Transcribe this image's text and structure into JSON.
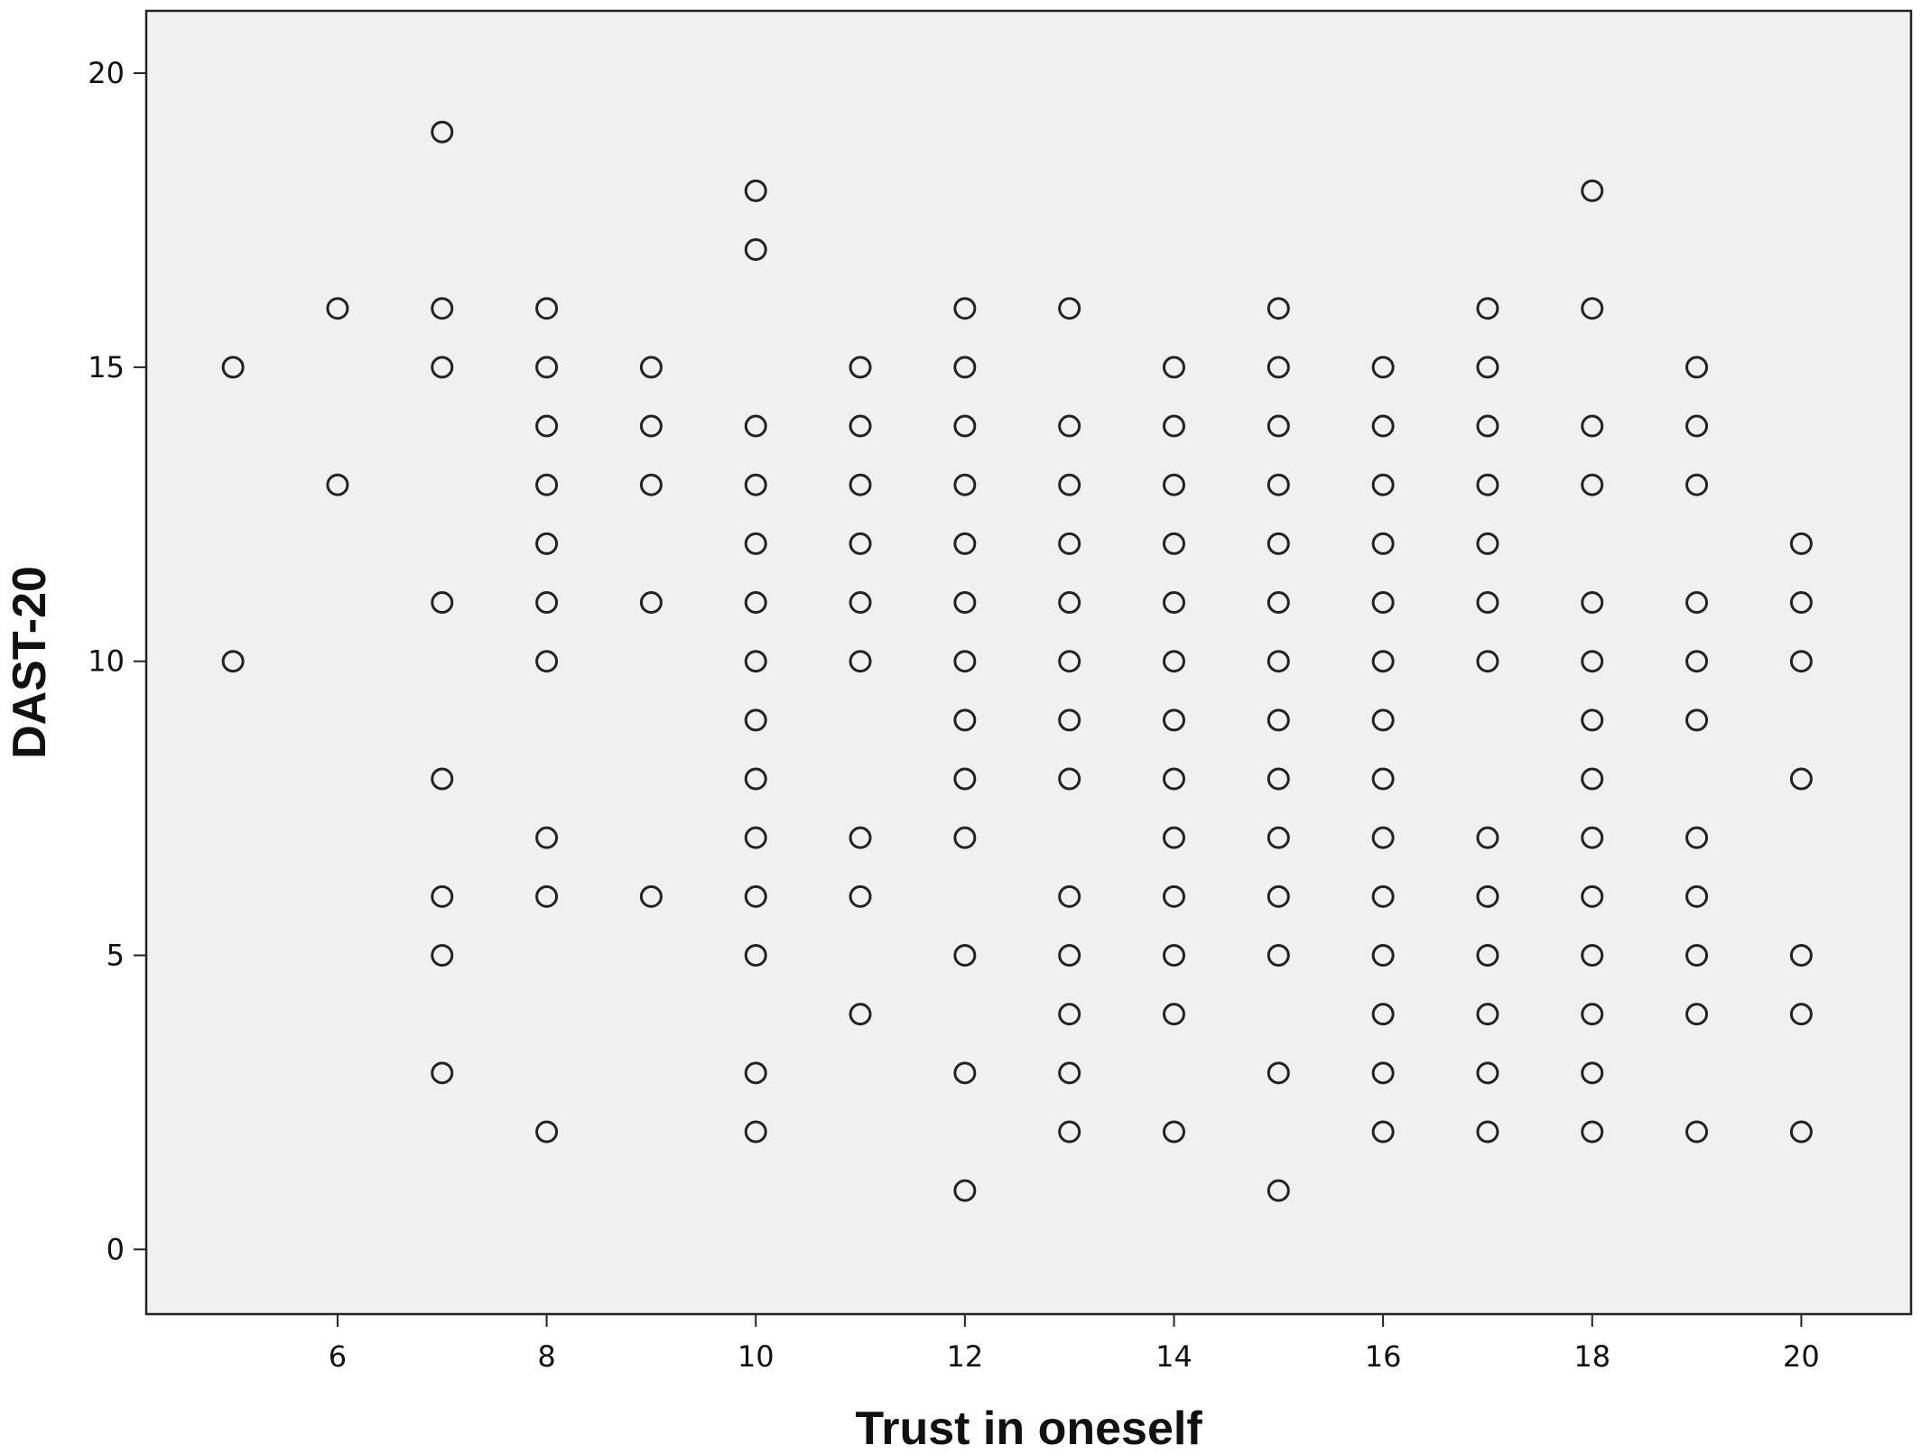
{
  "chart_data": {
    "type": "scatter",
    "title": "",
    "xlabel": "Trust in oneself",
    "ylabel": "DAST-20",
    "xlim": [
      4.17,
      21.05
    ],
    "ylim": [
      -1.1,
      21.06
    ],
    "x_ticks": [
      6,
      8,
      10,
      12,
      14,
      16,
      18,
      20
    ],
    "y_ticks": [
      0,
      5,
      10,
      15,
      20
    ],
    "grid": false,
    "legend": "none",
    "colors": {
      "plot_background": "#f0f0f0",
      "marker_stroke": "#222222",
      "axis": "#222222"
    },
    "series": [
      {
        "points": [
          [
            5,
            15
          ],
          [
            5,
            10
          ],
          [
            6,
            16
          ],
          [
            6,
            13
          ],
          [
            7,
            19
          ],
          [
            7,
            16
          ],
          [
            7,
            15
          ],
          [
            7,
            11
          ],
          [
            7,
            8
          ],
          [
            7,
            6
          ],
          [
            7,
            5
          ],
          [
            7,
            3
          ],
          [
            8,
            16
          ],
          [
            8,
            15
          ],
          [
            8,
            14
          ],
          [
            8,
            13
          ],
          [
            8,
            12
          ],
          [
            8,
            11
          ],
          [
            8,
            10
          ],
          [
            8,
            7
          ],
          [
            8,
            6
          ],
          [
            8,
            2
          ],
          [
            9,
            15
          ],
          [
            9,
            14
          ],
          [
            9,
            13
          ],
          [
            9,
            11
          ],
          [
            9,
            6
          ],
          [
            10,
            18
          ],
          [
            10,
            17
          ],
          [
            10,
            14
          ],
          [
            10,
            13
          ],
          [
            10,
            12
          ],
          [
            10,
            11
          ],
          [
            10,
            10
          ],
          [
            10,
            9
          ],
          [
            10,
            8
          ],
          [
            10,
            7
          ],
          [
            10,
            6
          ],
          [
            10,
            5
          ],
          [
            10,
            3
          ],
          [
            10,
            2
          ],
          [
            11,
            15
          ],
          [
            11,
            14
          ],
          [
            11,
            13
          ],
          [
            11,
            12
          ],
          [
            11,
            11
          ],
          [
            11,
            10
          ],
          [
            11,
            7
          ],
          [
            11,
            6
          ],
          [
            11,
            4
          ],
          [
            12,
            16
          ],
          [
            12,
            15
          ],
          [
            12,
            14
          ],
          [
            12,
            13
          ],
          [
            12,
            12
          ],
          [
            12,
            11
          ],
          [
            12,
            10
          ],
          [
            12,
            9
          ],
          [
            12,
            8
          ],
          [
            12,
            7
          ],
          [
            12,
            5
          ],
          [
            12,
            3
          ],
          [
            12,
            1
          ],
          [
            13,
            16
          ],
          [
            13,
            14
          ],
          [
            13,
            13
          ],
          [
            13,
            12
          ],
          [
            13,
            11
          ],
          [
            13,
            10
          ],
          [
            13,
            9
          ],
          [
            13,
            8
          ],
          [
            13,
            6
          ],
          [
            13,
            5
          ],
          [
            13,
            4
          ],
          [
            13,
            3
          ],
          [
            13,
            2
          ],
          [
            14,
            15
          ],
          [
            14,
            14
          ],
          [
            14,
            13
          ],
          [
            14,
            12
          ],
          [
            14,
            11
          ],
          [
            14,
            10
          ],
          [
            14,
            9
          ],
          [
            14,
            8
          ],
          [
            14,
            7
          ],
          [
            14,
            6
          ],
          [
            14,
            5
          ],
          [
            14,
            4
          ],
          [
            14,
            2
          ],
          [
            15,
            16
          ],
          [
            15,
            15
          ],
          [
            15,
            14
          ],
          [
            15,
            13
          ],
          [
            15,
            12
          ],
          [
            15,
            11
          ],
          [
            15,
            10
          ],
          [
            15,
            9
          ],
          [
            15,
            8
          ],
          [
            15,
            7
          ],
          [
            15,
            6
          ],
          [
            15,
            5
          ],
          [
            15,
            3
          ],
          [
            15,
            1
          ],
          [
            16,
            15
          ],
          [
            16,
            14
          ],
          [
            16,
            13
          ],
          [
            16,
            12
          ],
          [
            16,
            11
          ],
          [
            16,
            10
          ],
          [
            16,
            9
          ],
          [
            16,
            8
          ],
          [
            16,
            7
          ],
          [
            16,
            6
          ],
          [
            16,
            5
          ],
          [
            16,
            4
          ],
          [
            16,
            3
          ],
          [
            16,
            2
          ],
          [
            17,
            16
          ],
          [
            17,
            15
          ],
          [
            17,
            14
          ],
          [
            17,
            13
          ],
          [
            17,
            12
          ],
          [
            17,
            11
          ],
          [
            17,
            10
          ],
          [
            17,
            7
          ],
          [
            17,
            6
          ],
          [
            17,
            5
          ],
          [
            17,
            4
          ],
          [
            17,
            3
          ],
          [
            17,
            2
          ],
          [
            18,
            18
          ],
          [
            18,
            16
          ],
          [
            18,
            14
          ],
          [
            18,
            13
          ],
          [
            18,
            11
          ],
          [
            18,
            10
          ],
          [
            18,
            9
          ],
          [
            18,
            8
          ],
          [
            18,
            7
          ],
          [
            18,
            6
          ],
          [
            18,
            5
          ],
          [
            18,
            4
          ],
          [
            18,
            3
          ],
          [
            18,
            2
          ],
          [
            19,
            15
          ],
          [
            19,
            14
          ],
          [
            19,
            13
          ],
          [
            19,
            11
          ],
          [
            19,
            10
          ],
          [
            19,
            9
          ],
          [
            19,
            7
          ],
          [
            19,
            6
          ],
          [
            19,
            5
          ],
          [
            19,
            4
          ],
          [
            19,
            2
          ],
          [
            20,
            12
          ],
          [
            20,
            11
          ],
          [
            20,
            10
          ],
          [
            20,
            8
          ],
          [
            20,
            5
          ],
          [
            20,
            4
          ],
          [
            20,
            2
          ]
        ]
      }
    ]
  }
}
